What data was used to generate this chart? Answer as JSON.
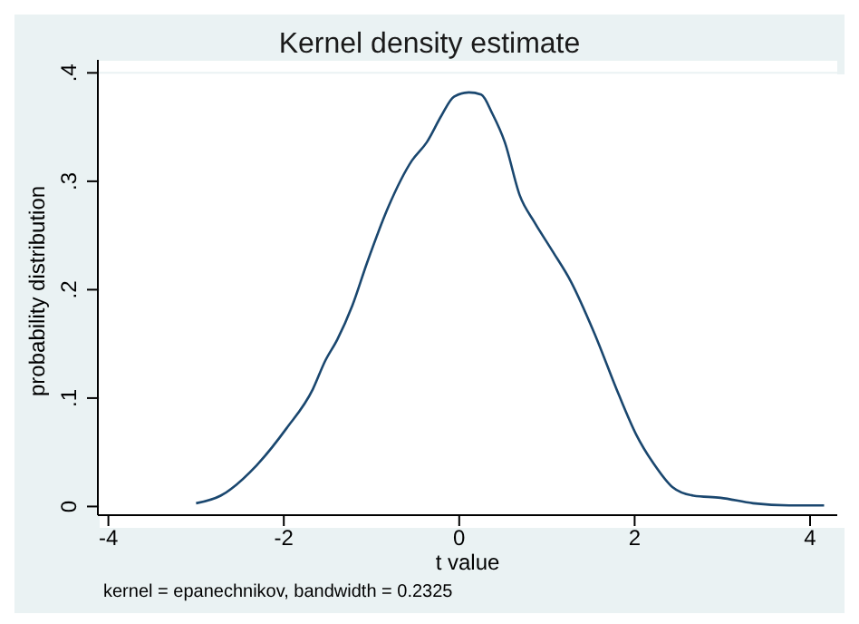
{
  "chart_data": {
    "type": "line",
    "title": "Kernel density estimate",
    "xlabel": "t value",
    "ylabel": "probability distribution",
    "annotations": [
      "kernel = epanechnikov, bandwidth = 0.2325"
    ],
    "x": [
      -3.0,
      -2.72,
      -2.31,
      -1.97,
      -1.67,
      -1.53,
      -1.39,
      -1.22,
      -1.05,
      -0.81,
      -0.54,
      -0.37,
      -0.2,
      -0.06,
      0.11,
      0.25,
      0.38,
      0.52,
      0.69,
      0.86,
      1.06,
      1.27,
      1.54,
      1.82,
      2.02,
      2.23,
      2.43,
      2.67,
      2.98,
      3.35,
      3.76,
      4.16
    ],
    "series": [
      {
        "color": "#1a476f",
        "values": [
          0.003,
          0.01,
          0.038,
          0.072,
          0.108,
          0.134,
          0.154,
          0.185,
          0.225,
          0.276,
          0.319,
          0.336,
          0.361,
          0.378,
          0.382,
          0.38,
          0.362,
          0.336,
          0.287,
          0.262,
          0.236,
          0.208,
          0.16,
          0.103,
          0.066,
          0.038,
          0.018,
          0.01,
          0.008,
          0.003,
          0.001,
          0.001
        ]
      }
    ],
    "xlim": [
      -4.12,
      4.31
    ],
    "ylim": [
      -0.008,
      0.412
    ],
    "xticks": [
      -4,
      -2,
      0,
      2,
      4
    ],
    "yticks": [
      {
        "value": 0,
        "label": "0"
      },
      {
        "value": 0.1,
        "label": ".1"
      },
      {
        "value": 0.2,
        "label": ".2"
      },
      {
        "value": 0.3,
        "label": ".3"
      },
      {
        "value": 0.4,
        "label": ".4"
      }
    ],
    "grid": "y",
    "marker": "none",
    "line_style": "solid"
  }
}
